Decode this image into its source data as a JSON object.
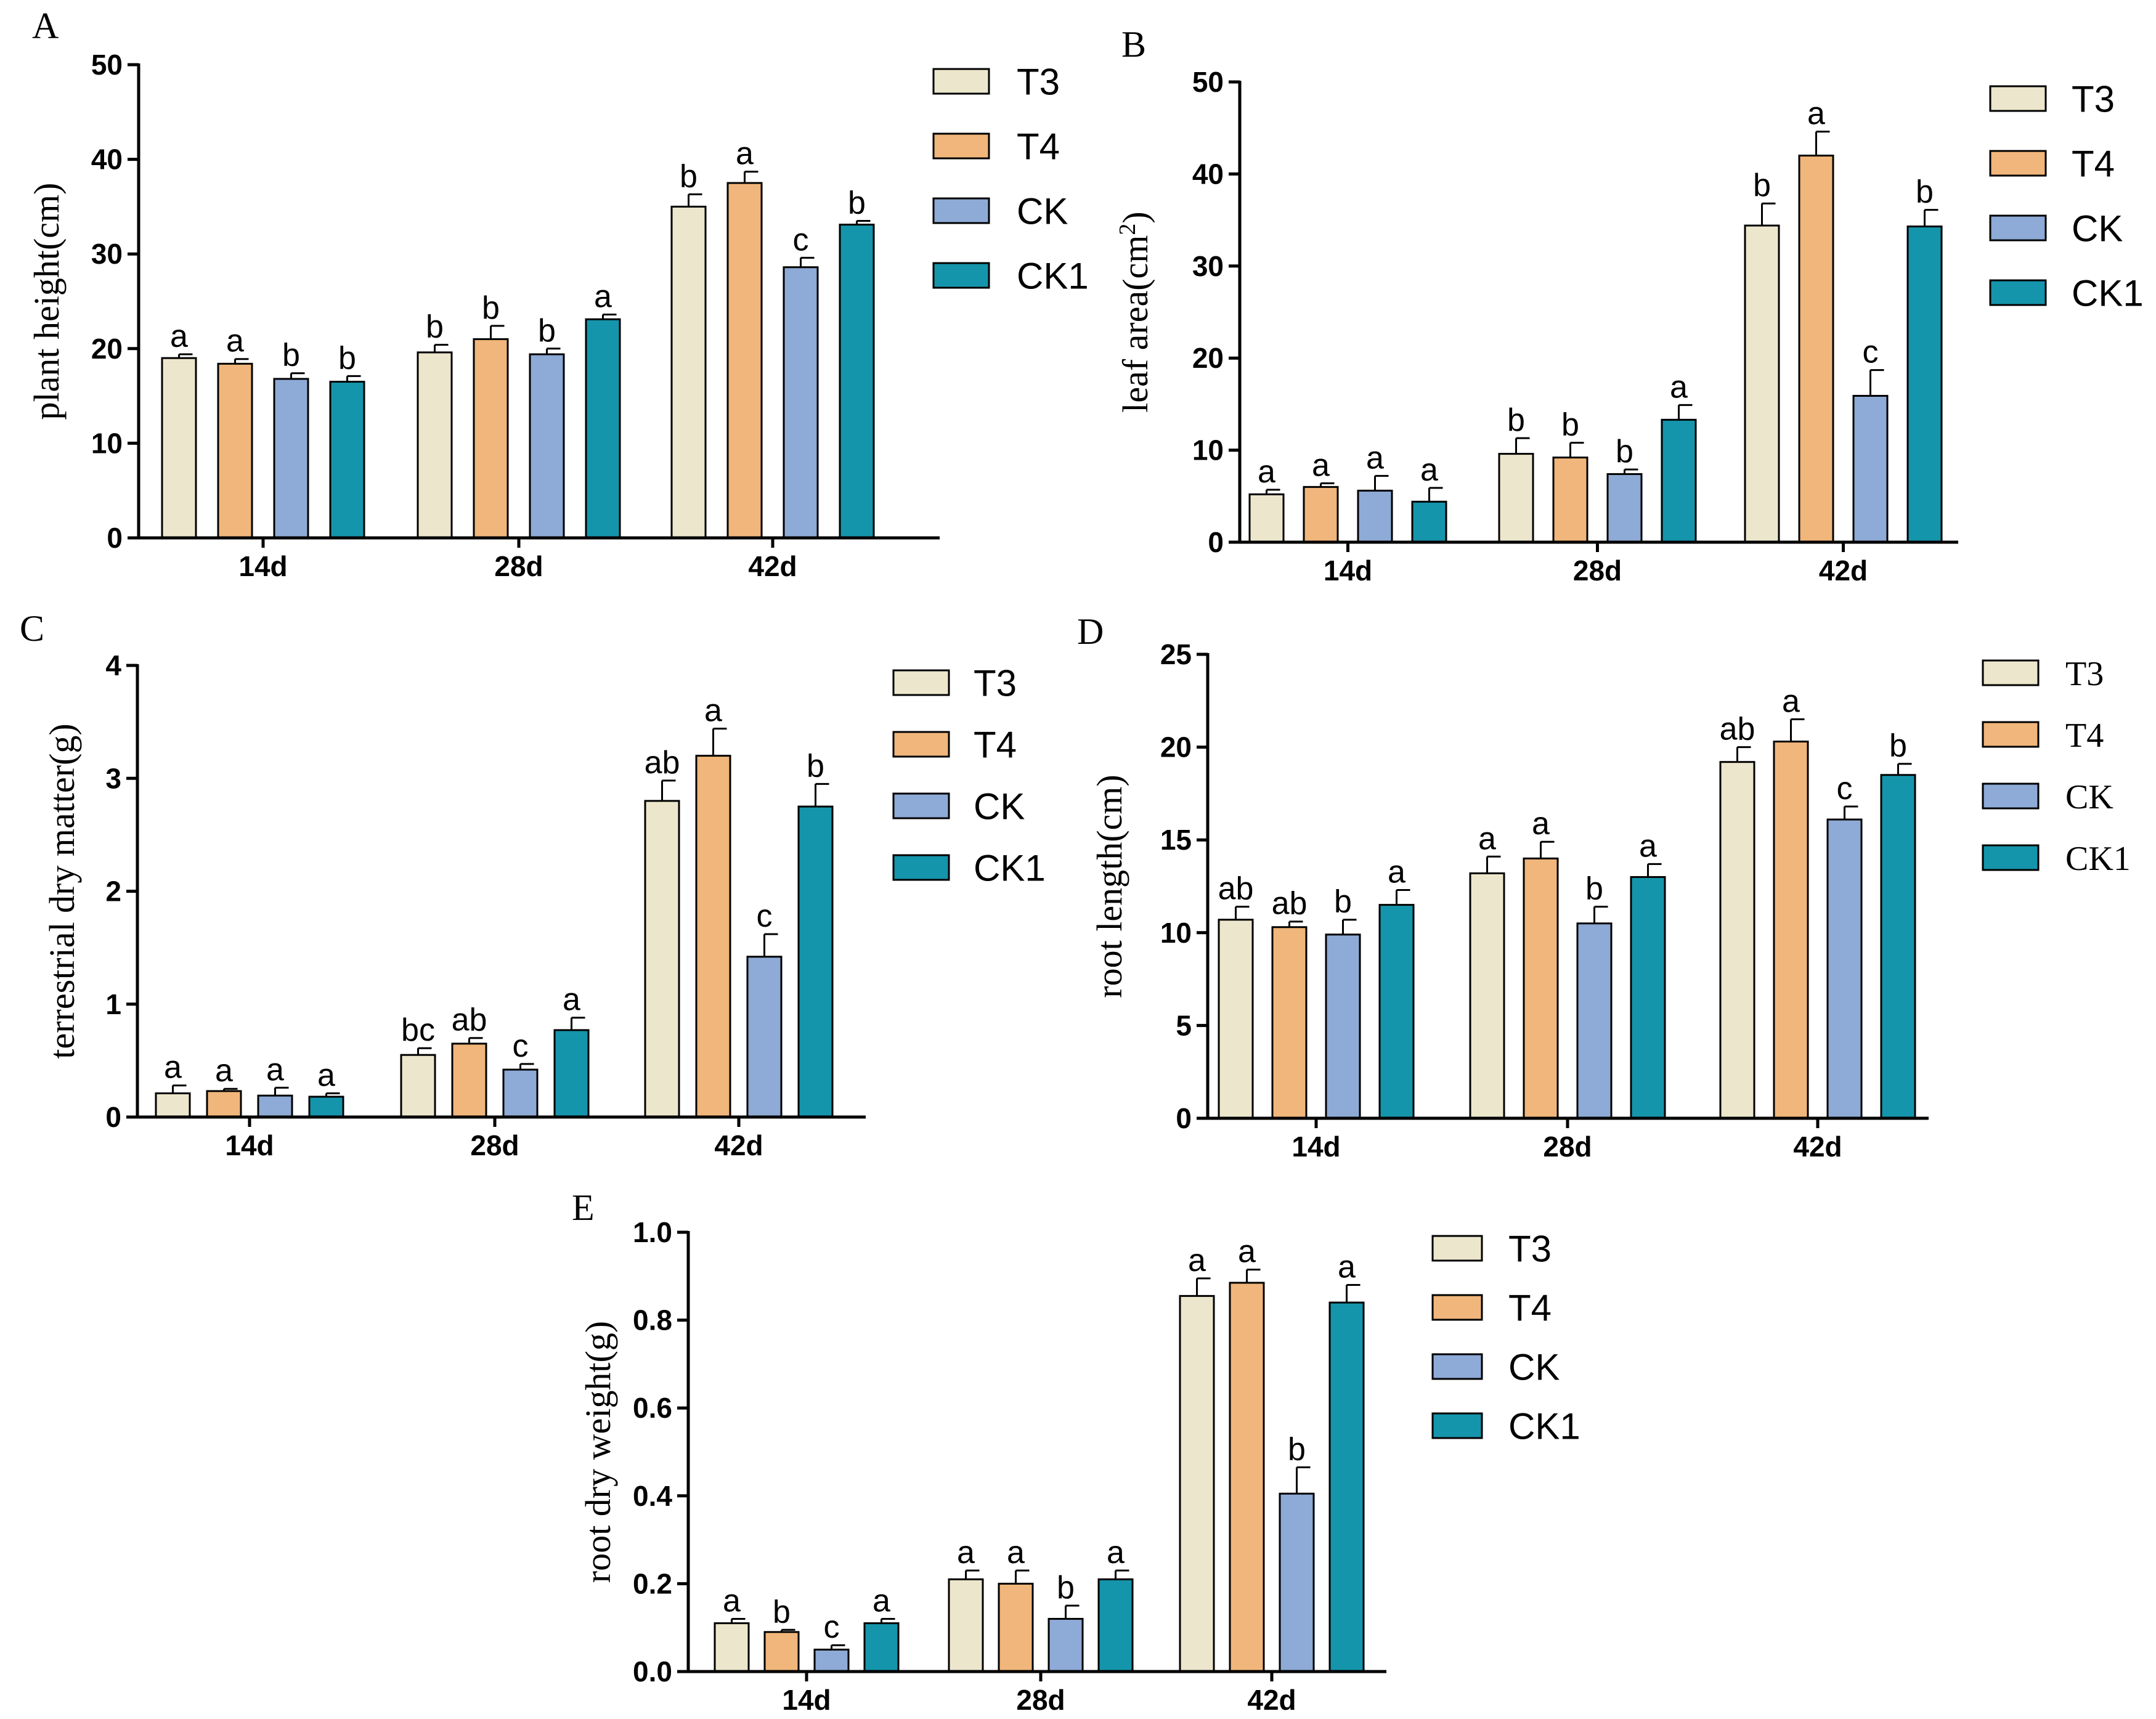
{
  "colors": {
    "T3": "#ece6cc",
    "T4": "#f1b67b",
    "CK": "#8eaad6",
    "CK1": "#1595ab",
    "axis": "#000000"
  },
  "legend_labels": [
    "T3",
    "T4",
    "CK",
    "CK1"
  ],
  "chart_data": [
    {
      "panel_label": "A",
      "type": "bar",
      "ylabel": "plant height(cm)",
      "ylim": [
        0,
        50
      ],
      "yticks": [
        "0",
        "10",
        "20",
        "30",
        "40",
        "50"
      ],
      "categories": [
        "14d",
        "28d",
        "42d"
      ],
      "series": [
        {
          "name": "T3",
          "values": [
            19.0,
            19.6,
            35.0
          ],
          "errors": [
            0.4,
            0.8,
            1.3
          ],
          "letters": [
            "a",
            "b",
            "b"
          ]
        },
        {
          "name": "T4",
          "values": [
            18.4,
            21.0,
            37.5
          ],
          "errors": [
            0.5,
            1.4,
            1.2
          ],
          "letters": [
            "a",
            "b",
            "a"
          ]
        },
        {
          "name": "CK",
          "values": [
            16.8,
            19.4,
            28.6
          ],
          "errors": [
            0.6,
            0.6,
            1.0
          ],
          "letters": [
            "b",
            "b",
            "c"
          ]
        },
        {
          "name": "CK1",
          "values": [
            16.5,
            23.1,
            33.1
          ],
          "errors": [
            0.6,
            0.5,
            0.4
          ],
          "letters": [
            "b",
            "a",
            "b"
          ]
        }
      ]
    },
    {
      "panel_label": "B",
      "type": "bar",
      "ylabel": "leaf area(cm",
      "ylabel_sup": "2",
      "ylabel_end": ")",
      "ylim": [
        0,
        50
      ],
      "yticks": [
        "0",
        "10",
        "20",
        "30",
        "40",
        "50"
      ],
      "categories": [
        "14d",
        "28d",
        "42d"
      ],
      "series": [
        {
          "name": "T3",
          "values": [
            5.2,
            9.6,
            34.4
          ],
          "errors": [
            0.5,
            1.7,
            2.4
          ],
          "letters": [
            "a",
            "b",
            "b"
          ]
        },
        {
          "name": "T4",
          "values": [
            6.0,
            9.2,
            42.0
          ],
          "errors": [
            0.4,
            1.6,
            2.6
          ],
          "letters": [
            "a",
            "b",
            "a"
          ]
        },
        {
          "name": "CK",
          "values": [
            5.6,
            7.4,
            15.9
          ],
          "errors": [
            1.6,
            0.5,
            2.8
          ],
          "letters": [
            "a",
            "b",
            "c"
          ]
        },
        {
          "name": "CK1",
          "values": [
            4.4,
            13.3,
            34.3
          ],
          "errors": [
            1.5,
            1.6,
            1.8
          ],
          "letters": [
            "a",
            "a",
            "b"
          ]
        }
      ]
    },
    {
      "panel_label": "C",
      "type": "bar",
      "ylabel": "terrestrial dry matter(g)",
      "ylim": [
        0,
        4
      ],
      "yticks": [
        "0",
        "1",
        "2",
        "3",
        "4"
      ],
      "categories": [
        "14d",
        "28d",
        "42d"
      ],
      "series": [
        {
          "name": "T3",
          "values": [
            0.21,
            0.55,
            2.8
          ],
          "errors": [
            0.07,
            0.06,
            0.18
          ],
          "letters": [
            "a",
            "bc",
            "ab"
          ]
        },
        {
          "name": "T4",
          "values": [
            0.23,
            0.65,
            3.2
          ],
          "errors": [
            0.02,
            0.05,
            0.24
          ],
          "letters": [
            "a",
            "ab",
            "a"
          ]
        },
        {
          "name": "CK",
          "values": [
            0.19,
            0.42,
            1.42
          ],
          "errors": [
            0.07,
            0.05,
            0.2
          ],
          "letters": [
            "a",
            "c",
            "c"
          ]
        },
        {
          "name": "CK1",
          "values": [
            0.18,
            0.77,
            2.75
          ],
          "errors": [
            0.03,
            0.11,
            0.2
          ],
          "letters": [
            "a",
            "a",
            "b"
          ]
        }
      ]
    },
    {
      "panel_label": "D",
      "type": "bar",
      "ylabel": "root length(cm)",
      "ylim": [
        0,
        25
      ],
      "yticks": [
        "0",
        "5",
        "10",
        "15",
        "20",
        "25"
      ],
      "categories": [
        "14d",
        "28d",
        "42d"
      ],
      "series": [
        {
          "name": "T3",
          "values": [
            10.7,
            13.2,
            19.2
          ],
          "errors": [
            0.7,
            0.9,
            0.8
          ],
          "letters": [
            "ab",
            "a",
            "ab"
          ]
        },
        {
          "name": "T4",
          "values": [
            10.3,
            14.0,
            20.3
          ],
          "errors": [
            0.3,
            0.9,
            1.2
          ],
          "letters": [
            "ab",
            "a",
            "a"
          ]
        },
        {
          "name": "CK",
          "values": [
            9.9,
            10.5,
            16.1
          ],
          "errors": [
            0.8,
            0.9,
            0.7
          ],
          "letters": [
            "b",
            "b",
            "c"
          ]
        },
        {
          "name": "CK1",
          "values": [
            11.5,
            13.0,
            18.5
          ],
          "errors": [
            0.8,
            0.7,
            0.6
          ],
          "letters": [
            "a",
            "a",
            "b"
          ]
        }
      ]
    },
    {
      "panel_label": "E",
      "type": "bar",
      "ylabel": "root dry weight(g)",
      "ylim": [
        0,
        1.0
      ],
      "yticks": [
        "0.0",
        "0.2",
        "0.4",
        "0.6",
        "0.8",
        "1.0"
      ],
      "categories": [
        "14d",
        "28d",
        "42d"
      ],
      "series": [
        {
          "name": "T3",
          "values": [
            0.11,
            0.21,
            0.855
          ],
          "errors": [
            0.01,
            0.02,
            0.04
          ],
          "letters": [
            "a",
            "a",
            "a"
          ]
        },
        {
          "name": "T4",
          "values": [
            0.09,
            0.2,
            0.885
          ],
          "errors": [
            0.005,
            0.03,
            0.03
          ],
          "letters": [
            "b",
            "a",
            "a"
          ]
        },
        {
          "name": "CK",
          "values": [
            0.05,
            0.12,
            0.405
          ],
          "errors": [
            0.01,
            0.03,
            0.06
          ],
          "letters": [
            "c",
            "b",
            "b"
          ]
        },
        {
          "name": "CK1",
          "values": [
            0.11,
            0.21,
            0.84
          ],
          "errors": [
            0.01,
            0.02,
            0.04
          ],
          "letters": [
            "a",
            "a",
            "a"
          ]
        }
      ]
    }
  ]
}
